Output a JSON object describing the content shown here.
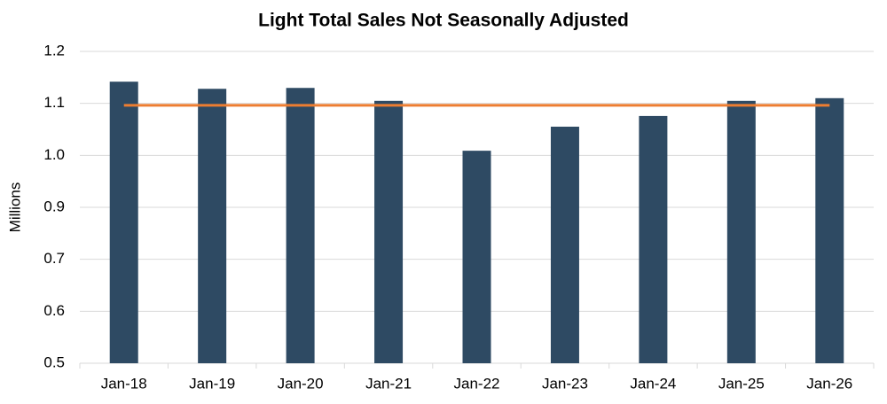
{
  "chart_data": {
    "type": "bar",
    "title": "Light Total Sales Not Seasonally Adjusted",
    "y_label": "Millions",
    "categories": [
      "Jan-18",
      "Jan-19",
      "Jan-20",
      "Jan-21",
      "Jan-22",
      "Jan-23",
      "Jan-24",
      "Jan-25",
      "Jan-26"
    ],
    "series": [
      {
        "type": "bar",
        "color": "#2e4a63",
        "values": [
          1.132,
          1.116,
          1.118,
          1.089,
          0.977,
          1.031,
          1.055,
          1.089,
          1.095
        ]
      },
      {
        "type": "line",
        "color": "#ed7d31",
        "values": [
          1.079,
          1.079,
          1.079,
          1.079,
          1.079,
          1.079,
          1.079,
          1.079,
          1.079
        ]
      }
    ],
    "ylim": [
      0.5,
      1.2
    ],
    "yticks": [
      0.5,
      {
        "value": 0.6167,
        "label": "0.6"
      },
      {
        "value": 0.7333,
        "label": "0.7"
      },
      {
        "value": 0.85,
        "label": "0.9"
      },
      {
        "value": 0.9667,
        "label": "1.0"
      },
      {
        "value": 1.0833,
        "label": "1.1"
      },
      1.2
    ],
    "grid": true
  }
}
